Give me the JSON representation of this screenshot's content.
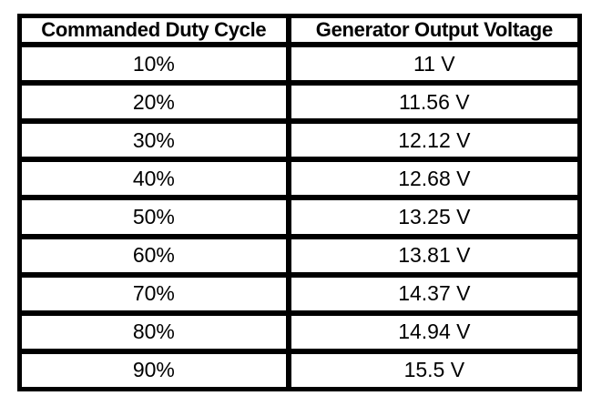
{
  "page": {
    "background_color": "#ffffff",
    "border_color": "#000000",
    "text_color": "#000000"
  },
  "table": {
    "headers": {
      "duty_cycle": "Commanded Duty Cycle",
      "voltage": "Generator Output Voltage"
    },
    "rows": [
      {
        "duty_cycle": "10%",
        "voltage": "11 V"
      },
      {
        "duty_cycle": "20%",
        "voltage": "11.56 V"
      },
      {
        "duty_cycle": "30%",
        "voltage": "12.12 V"
      },
      {
        "duty_cycle": "40%",
        "voltage": "12.68 V"
      },
      {
        "duty_cycle": "50%",
        "voltage": "13.25 V"
      },
      {
        "duty_cycle": "60%",
        "voltage": "13.81 V"
      },
      {
        "duty_cycle": "70%",
        "voltage": "14.37 V"
      },
      {
        "duty_cycle": "80%",
        "voltage": "14.94 V"
      },
      {
        "duty_cycle": "90%",
        "voltage": "15.5 V"
      }
    ]
  },
  "chart_data": {
    "type": "table",
    "columns": [
      "Commanded Duty Cycle",
      "Generator Output Voltage"
    ],
    "duty_cycle_percent": [
      10,
      20,
      30,
      40,
      50,
      60,
      70,
      80,
      90
    ],
    "generator_output_voltage_v": [
      11,
      11.56,
      12.12,
      12.68,
      13.25,
      13.81,
      14.37,
      14.94,
      15.5
    ],
    "layout": {
      "grid": "all-borders",
      "header_bold": true,
      "cell_alignment": "center"
    }
  }
}
